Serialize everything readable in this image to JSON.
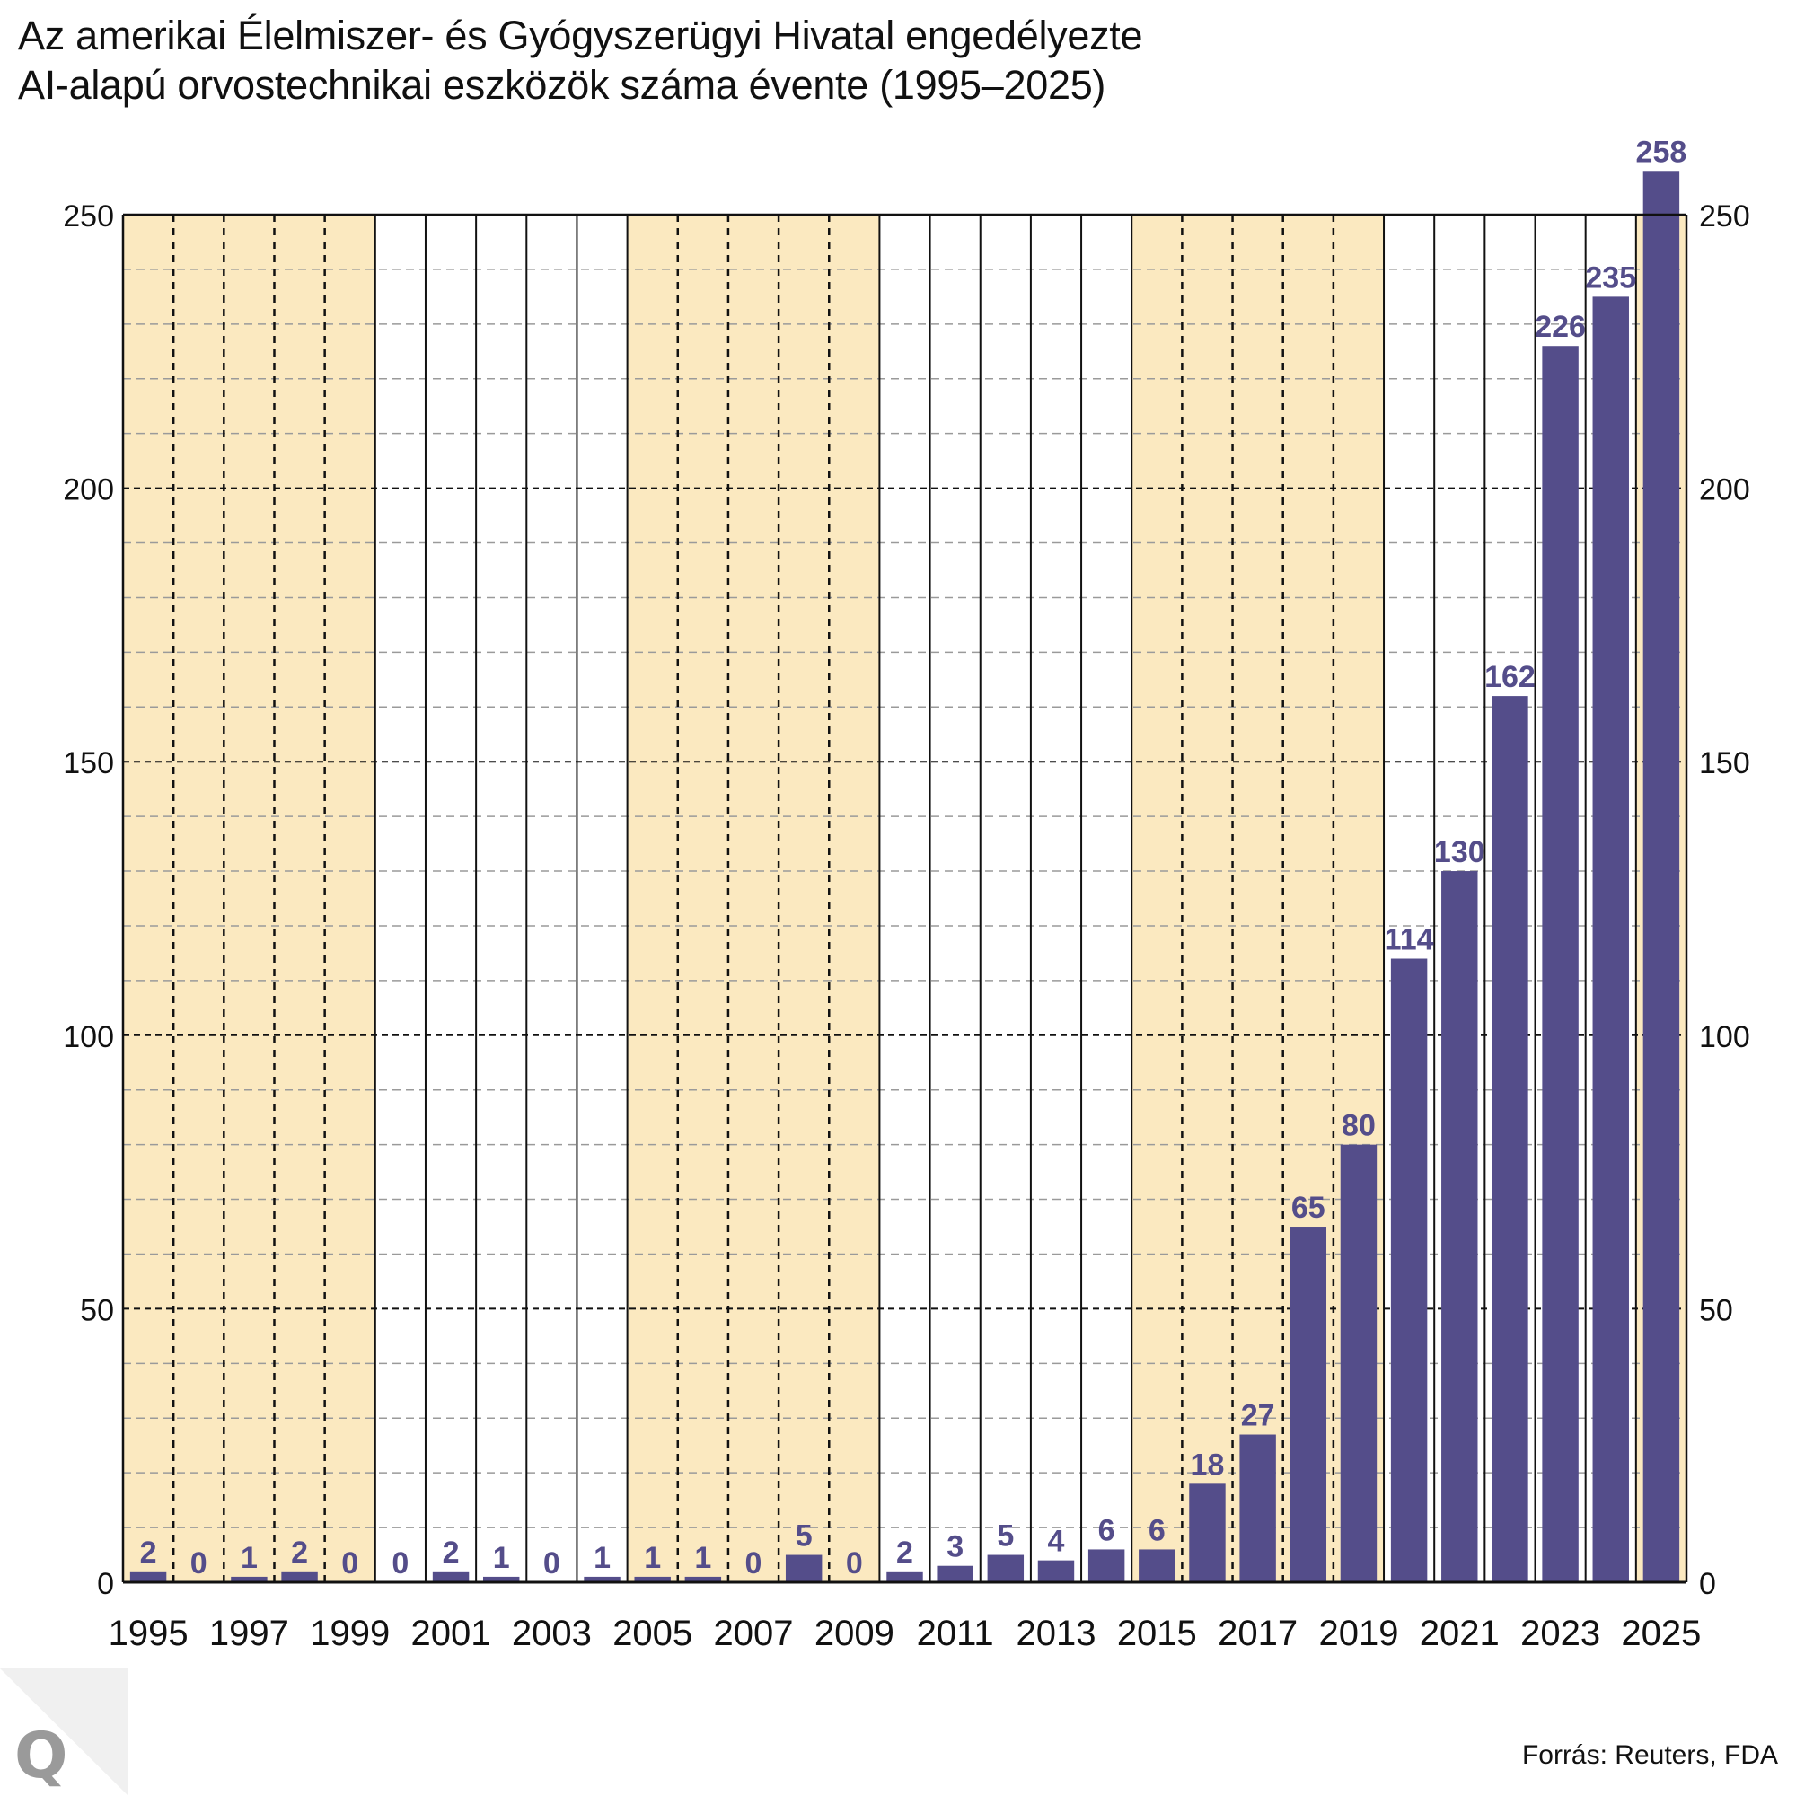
{
  "title": {
    "line1": "Az amerikai Élelmiszer- és Gyógyszerügyi Hivatal engedélyezte",
    "line2": "AI-alapú orvostechnikai eszközök száma évente (1995–2025)"
  },
  "source": "Forrás: Reuters, FDA",
  "logo": {
    "letter": "Q",
    "icon": "q-logo-icon"
  },
  "colors": {
    "bar": "#544d8a",
    "value_label": "#544d8a",
    "shaded_band": "#fbe9c0",
    "logo_letter": "#9a9a9a",
    "logo_bg": "#f0f0f0"
  },
  "chart_data": {
    "type": "bar",
    "title": "Az amerikai Élelmiszer- és Gyógyszerügyi Hivatal engedélyezte AI-alapú orvostechnikai eszközök száma évente (1995–2025)",
    "xlabel": "",
    "ylabel": "",
    "ylim": [
      0,
      250
    ],
    "yticks": [
      0,
      50,
      100,
      150,
      200,
      250
    ],
    "y_minor_step": 10,
    "y_axis_sides": [
      "left",
      "right"
    ],
    "grid": true,
    "categories": [
      "1995",
      "1996",
      "1997",
      "1998",
      "1999",
      "2000",
      "2001",
      "2002",
      "2003",
      "2004",
      "2005",
      "2006",
      "2007",
      "2008",
      "2009",
      "2010",
      "2011",
      "2012",
      "2013",
      "2014",
      "2015",
      "2016",
      "2017",
      "2018",
      "2019",
      "2020",
      "2021",
      "2022",
      "2023",
      "2024",
      "2025"
    ],
    "xtick_labels": [
      "1995",
      "1997",
      "1999",
      "2001",
      "2003",
      "2005",
      "2007",
      "2009",
      "2011",
      "2013",
      "2015",
      "2017",
      "2019",
      "2021",
      "2023",
      "2025"
    ],
    "values": [
      2,
      0,
      1,
      2,
      0,
      0,
      2,
      1,
      0,
      1,
      1,
      1,
      0,
      5,
      0,
      2,
      3,
      5,
      4,
      6,
      6,
      18,
      27,
      65,
      80,
      114,
      130,
      162,
      226,
      235,
      258
    ],
    "shaded_year_bands": [
      [
        1995,
        1999
      ],
      [
        2005,
        2009
      ],
      [
        2015,
        2019
      ],
      [
        2025,
        2025
      ]
    ],
    "data_labels": true
  }
}
